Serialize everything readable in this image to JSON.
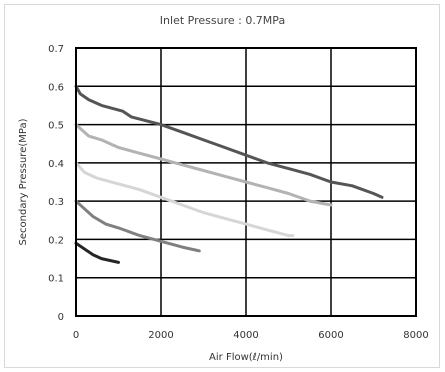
{
  "chart_data": {
    "type": "line",
    "title": "Inlet Pressure : 0.7MPa",
    "xlabel": "Air Flow(ℓ/min)",
    "ylabel": "Secondary Pressure(MPa)",
    "xlim": [
      0,
      8000
    ],
    "ylim": [
      0,
      0.7
    ],
    "xticks": [
      "0",
      "2000",
      "4000",
      "6000",
      "8000"
    ],
    "yticks": [
      "0",
      "0.1",
      "0.2",
      "0.3",
      "0.4",
      "0.5",
      "0.6",
      "0.7"
    ],
    "grid": true,
    "series": [
      {
        "color": "#555555",
        "width": 3,
        "x": [
          0,
          100,
          300,
          600,
          1100,
          1300,
          2000,
          2500,
          3000,
          3500,
          4000,
          4500,
          5000,
          5500,
          6000,
          6500,
          7000,
          7200
        ],
        "y": [
          0.6,
          0.58,
          0.565,
          0.55,
          0.535,
          0.52,
          0.5,
          0.48,
          0.46,
          0.44,
          0.42,
          0.4,
          0.385,
          0.37,
          0.35,
          0.34,
          0.32,
          0.31
        ]
      },
      {
        "color": "#b3b3b3",
        "width": 3,
        "x": [
          0,
          300,
          600,
          1000,
          1500,
          2000,
          2500,
          3000,
          3500,
          4000,
          4500,
          5000,
          5500,
          6000
        ],
        "y": [
          0.5,
          0.47,
          0.46,
          0.44,
          0.425,
          0.41,
          0.395,
          0.38,
          0.365,
          0.35,
          0.335,
          0.32,
          0.3,
          0.29
        ]
      },
      {
        "color": "#d6d6d6",
        "width": 3,
        "x": [
          0,
          200,
          500,
          1000,
          1500,
          2000,
          2500,
          3000,
          3500,
          4000,
          4500,
          5000,
          5100
        ],
        "y": [
          0.4,
          0.375,
          0.36,
          0.345,
          0.33,
          0.31,
          0.29,
          0.27,
          0.255,
          0.24,
          0.225,
          0.21,
          0.21
        ]
      },
      {
        "color": "#808080",
        "width": 3,
        "x": [
          0,
          200,
          400,
          700,
          1000,
          1500,
          2000,
          2500,
          2900
        ],
        "y": [
          0.3,
          0.28,
          0.26,
          0.24,
          0.23,
          0.21,
          0.195,
          0.18,
          0.17
        ]
      },
      {
        "color": "#262626",
        "width": 3,
        "x": [
          0,
          200,
          400,
          600,
          800,
          1000
        ],
        "y": [
          0.19,
          0.175,
          0.16,
          0.15,
          0.145,
          0.14
        ]
      }
    ]
  }
}
